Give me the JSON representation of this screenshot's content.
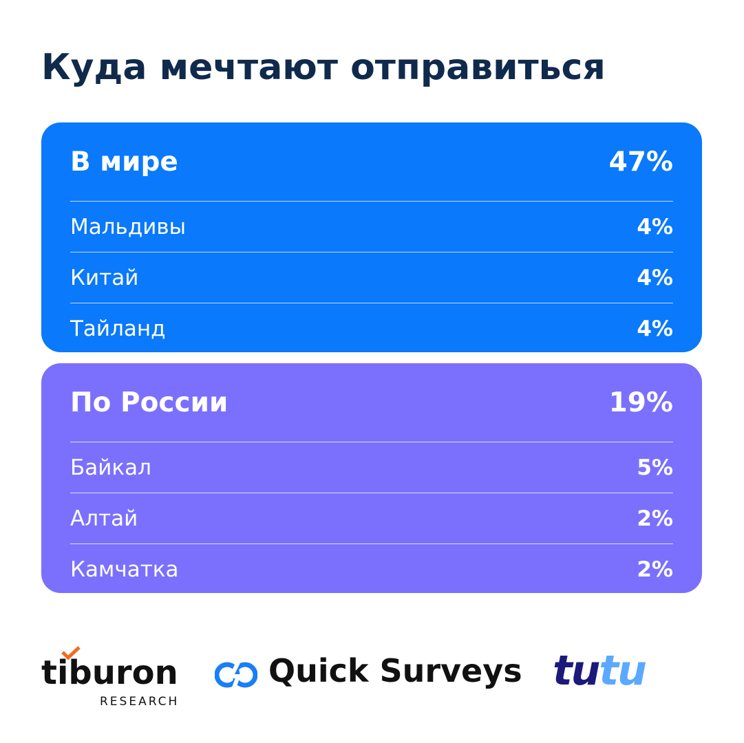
{
  "title": "Куда мечтают отправиться",
  "sections": [
    {
      "heading": "В мире",
      "total": "47%",
      "rows": [
        [
          "Мальдивы",
          "4%"
        ],
        [
          "Китай",
          "4%"
        ],
        [
          "Тайланд",
          "4%"
        ]
      ]
    },
    {
      "heading": "По России",
      "total": "19%",
      "rows": [
        [
          "Байкал",
          "5%"
        ],
        [
          "Алтай",
          "2%"
        ],
        [
          "Камчатка",
          "2%"
        ]
      ]
    }
  ],
  "logos": {
    "tiburon": "tiburon",
    "tiburon_sub": "RESEARCH",
    "quick": "Quick Surveys",
    "tutu_a": "tu",
    "tutu_b": "tu"
  }
}
